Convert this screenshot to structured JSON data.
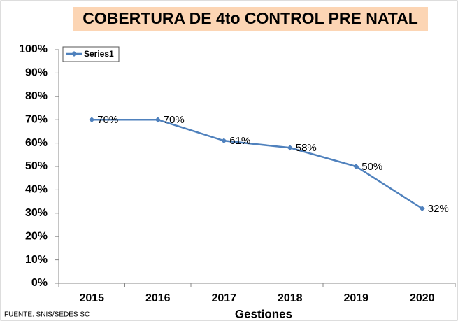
{
  "chart_data": {
    "type": "line",
    "title": "COBERTURA DE 4to CONTROL PRE NATAL",
    "x_label": "Gestiones",
    "source": "FUENTE: SNIS/SEDES SC",
    "categories": [
      "2015",
      "2016",
      "2017",
      "2018",
      "2019",
      "2020"
    ],
    "series": [
      {
        "name": "Series1",
        "color": "#4f81bd",
        "values": [
          70,
          70,
          61,
          58,
          50,
          32
        ],
        "value_labels": [
          "70%",
          "70%",
          "61%",
          "58%",
          "50%",
          "32%"
        ]
      }
    ],
    "ylim": [
      0,
      100
    ],
    "yticks": [
      {
        "value": 0,
        "label": "0%"
      },
      {
        "value": 10,
        "label": "10%"
      },
      {
        "value": 20,
        "label": "20%"
      },
      {
        "value": 30,
        "label": "30%"
      },
      {
        "value": 40,
        "label": "40%"
      },
      {
        "value": 50,
        "label": "50%"
      },
      {
        "value": 60,
        "label": "60%"
      },
      {
        "value": 70,
        "label": "70%"
      },
      {
        "value": 80,
        "label": "80%"
      },
      {
        "value": 90,
        "label": "90%"
      },
      {
        "value": 100,
        "label": "100%"
      }
    ],
    "grid": false,
    "legend": "top-left"
  }
}
